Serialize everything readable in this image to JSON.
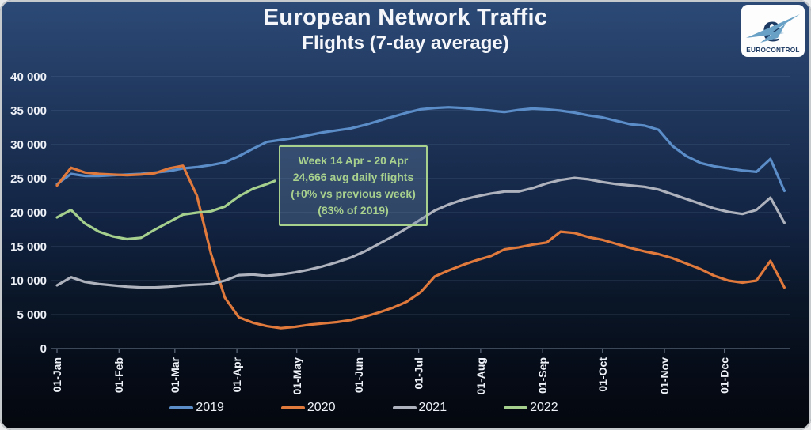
{
  "header": {
    "title": "European Network Traffic",
    "subtitle": "Flights (7-day average)"
  },
  "logo": {
    "brand": "EUROCONTROL",
    "glyph": "e",
    "navy": "#1d3a63",
    "plane_blue": "#69a1c6"
  },
  "annotation": {
    "line1": "Week 14 Apr - 20 Apr",
    "line2": "24,666 avg daily flights",
    "line3": "(+0% vs previous week)",
    "line4": "(83% of 2019)",
    "border_color": "#a9d18e",
    "text_color": "#a9d18e"
  },
  "chart_data": {
    "type": "line",
    "title": "European Network Traffic",
    "subtitle": "Flights (7-day average)",
    "xlabel": "",
    "ylabel": "",
    "grid": "horizontal",
    "legend_position": "bottom",
    "ylim": [
      0,
      40000
    ],
    "xlim": [
      1,
      368
    ],
    "ytick_values": [
      0,
      5000,
      10000,
      15000,
      20000,
      25000,
      30000,
      35000,
      40000
    ],
    "ytick_labels": [
      "0",
      "5 000",
      "10 000",
      "15 000",
      "20 000",
      "25 000",
      "30 000",
      "35 000",
      "40 000"
    ],
    "xticks": [
      {
        "label": "01-Jan",
        "day": 1
      },
      {
        "label": "01-Feb",
        "day": 32
      },
      {
        "label": "01-Mar",
        "day": 60
      },
      {
        "label": "01-Apr",
        "day": 91
      },
      {
        "label": "01-May",
        "day": 121
      },
      {
        "label": "01-Jun",
        "day": 152
      },
      {
        "label": "01-Jul",
        "day": 182
      },
      {
        "label": "01-Aug",
        "day": 213
      },
      {
        "label": "01-Sep",
        "day": 244
      },
      {
        "label": "01-Oct",
        "day": 274
      },
      {
        "label": "01-Nov",
        "day": 305
      },
      {
        "label": "01-Dec",
        "day": 335
      }
    ],
    "series": [
      {
        "name": "2019",
        "color": "#5b8dc8",
        "days": [
          1,
          8,
          15,
          22,
          29,
          36,
          43,
          50,
          57,
          64,
          71,
          78,
          85,
          92,
          99,
          106,
          113,
          120,
          127,
          134,
          141,
          148,
          155,
          162,
          169,
          176,
          183,
          190,
          197,
          204,
          211,
          218,
          225,
          232,
          239,
          246,
          253,
          260,
          267,
          274,
          281,
          288,
          295,
          302,
          309,
          316,
          323,
          330,
          337,
          344,
          351,
          358,
          365
        ],
        "values": [
          24200,
          25700,
          25400,
          25400,
          25500,
          25600,
          25700,
          25900,
          26100,
          26500,
          26700,
          27000,
          27400,
          28300,
          29400,
          30400,
          30700,
          31000,
          31400,
          31800,
          32100,
          32400,
          32900,
          33500,
          34100,
          34700,
          35200,
          35400,
          35500,
          35400,
          35200,
          35000,
          34800,
          35100,
          35300,
          35200,
          35000,
          34700,
          34300,
          34000,
          33500,
          33000,
          32800,
          32200,
          29800,
          28300,
          27300,
          26800,
          26500,
          26200,
          26000,
          27900,
          23200
        ]
      },
      {
        "name": "2020",
        "color": "#e0793c",
        "days": [
          1,
          8,
          15,
          22,
          29,
          36,
          43,
          50,
          57,
          64,
          71,
          78,
          85,
          92,
          99,
          106,
          113,
          120,
          127,
          134,
          141,
          148,
          155,
          162,
          169,
          176,
          183,
          190,
          197,
          204,
          211,
          218,
          225,
          232,
          239,
          246,
          253,
          260,
          267,
          274,
          281,
          288,
          295,
          302,
          309,
          316,
          323,
          330,
          337,
          344,
          351,
          358,
          365
        ],
        "values": [
          24000,
          26600,
          25900,
          25700,
          25600,
          25500,
          25600,
          25800,
          26500,
          26900,
          22500,
          14000,
          7500,
          4600,
          3800,
          3300,
          3000,
          3200,
          3500,
          3700,
          3900,
          4200,
          4700,
          5300,
          6000,
          6900,
          8300,
          10600,
          11500,
          12300,
          13000,
          13600,
          14600,
          14900,
          15300,
          15600,
          17200,
          17000,
          16400,
          16000,
          15400,
          14800,
          14300,
          13900,
          13300,
          12500,
          11700,
          10700,
          10000,
          9700,
          10000,
          12900,
          9000
        ]
      },
      {
        "name": "2021",
        "color": "#aeb2bc",
        "days": [
          1,
          8,
          15,
          22,
          29,
          36,
          43,
          50,
          57,
          64,
          71,
          78,
          85,
          92,
          99,
          106,
          113,
          120,
          127,
          134,
          141,
          148,
          155,
          162,
          169,
          176,
          183,
          190,
          197,
          204,
          211,
          218,
          225,
          232,
          239,
          246,
          253,
          260,
          267,
          274,
          281,
          288,
          295,
          302,
          309,
          316,
          323,
          330,
          337,
          344,
          351,
          358,
          365
        ],
        "values": [
          9300,
          10500,
          9800,
          9500,
          9300,
          9100,
          9000,
          9000,
          9100,
          9300,
          9400,
          9500,
          10000,
          10800,
          10900,
          10700,
          10900,
          11200,
          11600,
          12100,
          12700,
          13400,
          14300,
          15400,
          16500,
          17700,
          19000,
          20300,
          21200,
          21900,
          22400,
          22800,
          23100,
          23100,
          23600,
          24300,
          24800,
          25100,
          24900,
          24500,
          24200,
          24000,
          23800,
          23400,
          22700,
          22000,
          21300,
          20600,
          20100,
          19800,
          20400,
          22200,
          18500
        ]
      },
      {
        "name": "2022",
        "color": "#a5cf8d",
        "days": [
          1,
          8,
          15,
          22,
          29,
          36,
          43,
          50,
          57,
          64,
          71,
          78,
          85,
          92,
          99,
          106,
          110
        ],
        "values": [
          19300,
          20400,
          18400,
          17200,
          16500,
          16100,
          16300,
          17500,
          18600,
          19700,
          20000,
          20200,
          20900,
          22400,
          23500,
          24200,
          24666
        ]
      }
    ]
  }
}
